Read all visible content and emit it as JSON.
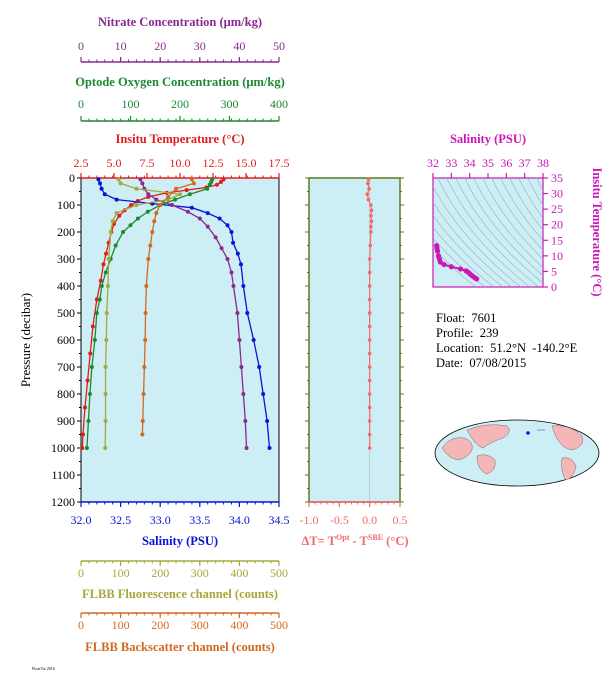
{
  "figure": {
    "footer_text": "FloatViz 2016",
    "info": {
      "float_label": "Float:",
      "float": "7601",
      "profile_label": "Profile:",
      "profile": "239",
      "location_label": "Location:",
      "location": "51.2°N  -140.2°E",
      "date_label": "Date:",
      "date": "07/08/2015"
    }
  },
  "colors": {
    "panel_bg": "#cdeef5",
    "temperature": "#e31b1b",
    "salinity": "#0a14d6",
    "nitrate": "#8a2a8f",
    "oxygen": "#1c8a2e",
    "fluorescence": "#a5a83a",
    "backscatter": "#d2691e",
    "delta_t": "#f06a6a",
    "ts": "#cc17b5"
  },
  "chart_data": [
    {
      "type": "line",
      "panel": "profiles",
      "ylabel": "Pressure (decibar)",
      "yticks": [
        0,
        100,
        200,
        300,
        400,
        500,
        600,
        700,
        800,
        900,
        1000,
        1100,
        1200
      ],
      "ylim": [
        0,
        1200
      ],
      "axes": {
        "nitrate": {
          "label": "Nitrate Concentration (μm/kg)",
          "lim": [
            0,
            50
          ],
          "ticks": [
            0,
            10,
            20,
            30,
            40,
            50
          ]
        },
        "oxygen": {
          "label": "Optode Oxygen Concentration (μm/kg)",
          "lim": [
            0,
            400
          ],
          "ticks": [
            0,
            100,
            200,
            300,
            400
          ]
        },
        "temperature": {
          "label": "Insitu Temperature (°C)",
          "lim": [
            2.5,
            17.5
          ],
          "ticks": [
            "2.5",
            "5.0",
            "7.5",
            "10.0",
            "12.5",
            "15.0",
            "17.5"
          ]
        },
        "salinity": {
          "label": "Salinity (PSU)",
          "lim": [
            32,
            34.5
          ],
          "ticks": [
            "32.0",
            "32.5",
            "33.0",
            "33.5",
            "34.0",
            "34.5"
          ]
        },
        "fluorescence": {
          "label": "FLBB Fluorescence channel (counts)",
          "lim": [
            0,
            500
          ],
          "ticks": [
            0,
            100,
            200,
            300,
            400,
            500
          ]
        },
        "backscatter": {
          "label": "FLBB Backscatter channel (counts)",
          "lim": [
            0,
            500
          ],
          "ticks": [
            0,
            100,
            200,
            300,
            400,
            500
          ]
        }
      },
      "series": [
        {
          "key": "temperature",
          "points": [
            [
              13.3,
              5
            ],
            [
              13.1,
              15
            ],
            [
              12.8,
              25
            ],
            [
              12.0,
              35
            ],
            [
              10.5,
              45
            ],
            [
              9.0,
              55
            ],
            [
              7.6,
              70
            ],
            [
              6.8,
              85
            ],
            [
              6.3,
              100
            ],
            [
              5.8,
              120
            ],
            [
              5.4,
              140
            ],
            [
              5.0,
              170
            ],
            [
              4.8,
              200
            ],
            [
              4.6,
              240
            ],
            [
              4.4,
              280
            ],
            [
              4.2,
              320
            ],
            [
              4.0,
              380
            ],
            [
              3.7,
              450
            ],
            [
              3.4,
              550
            ],
            [
              3.2,
              650
            ],
            [
              3.0,
              750
            ],
            [
              2.8,
              850
            ],
            [
              2.65,
              950
            ],
            [
              2.6,
              1000
            ]
          ]
        },
        {
          "key": "salinity",
          "points": [
            [
              32.22,
              5
            ],
            [
              32.24,
              20
            ],
            [
              32.26,
              40
            ],
            [
              32.3,
              60
            ],
            [
              32.45,
              80
            ],
            [
              32.9,
              95
            ],
            [
              33.4,
              110
            ],
            [
              33.6,
              130
            ],
            [
              33.75,
              150
            ],
            [
              33.85,
              175
            ],
            [
              33.9,
              200
            ],
            [
              33.92,
              240
            ],
            [
              33.98,
              280
            ],
            [
              34.02,
              320
            ],
            [
              34.05,
              400
            ],
            [
              34.1,
              500
            ],
            [
              34.18,
              600
            ],
            [
              34.25,
              700
            ],
            [
              34.3,
              800
            ],
            [
              34.35,
              900
            ],
            [
              34.38,
              1000
            ]
          ]
        },
        {
          "key": "nitrate",
          "points": [
            [
              15,
              5
            ],
            [
              15.5,
              20
            ],
            [
              16,
              40
            ],
            [
              17,
              60
            ],
            [
              19,
              80
            ],
            [
              23,
              100
            ],
            [
              27,
              125
            ],
            [
              30,
              150
            ],
            [
              32,
              180
            ],
            [
              34,
              220
            ],
            [
              35.5,
              260
            ],
            [
              37,
              300
            ],
            [
              38,
              350
            ],
            [
              38.5,
              400
            ],
            [
              39.5,
              500
            ],
            [
              40,
              600
            ],
            [
              40.5,
              700
            ],
            [
              41,
              800
            ],
            [
              41.5,
              900
            ],
            [
              41.8,
              1000
            ]
          ]
        },
        {
          "key": "oxygen",
          "points": [
            [
              265,
              5
            ],
            [
              263,
              15
            ],
            [
              260,
              25
            ],
            [
              255,
              40
            ],
            [
              220,
              60
            ],
            [
              190,
              80
            ],
            [
              160,
              100
            ],
            [
              135,
              125
            ],
            [
              115,
              150
            ],
            [
              100,
              175
            ],
            [
              85,
              200
            ],
            [
              70,
              250
            ],
            [
              60,
              300
            ],
            [
              50,
              350
            ],
            [
              42,
              400
            ],
            [
              38,
              450
            ],
            [
              32,
              500
            ],
            [
              28,
              600
            ],
            [
              22,
              700
            ],
            [
              18,
              800
            ],
            [
              15,
              900
            ],
            [
              12,
              1000
            ]
          ]
        },
        {
          "key": "fluorescence",
          "points": [
            [
              95,
              5
            ],
            [
              100,
              20
            ],
            [
              140,
              40
            ],
            [
              250,
              60
            ],
            [
              220,
              80
            ],
            [
              140,
              100
            ],
            [
              90,
              130
            ],
            [
              80,
              160
            ],
            [
              75,
              200
            ],
            [
              70,
              300
            ],
            [
              68,
              400
            ],
            [
              65,
              500
            ],
            [
              64,
              600
            ],
            [
              62,
              700
            ],
            [
              62,
              800
            ],
            [
              62,
              900
            ],
            [
              61,
              1000
            ]
          ]
        },
        {
          "key": "backscatter",
          "points": [
            [
              280,
              5
            ],
            [
              285,
              20
            ],
            [
              240,
              40
            ],
            [
              220,
              70
            ],
            [
              200,
              100
            ],
            [
              190,
              130
            ],
            [
              185,
              160
            ],
            [
              180,
              200
            ],
            [
              175,
              250
            ],
            [
              170,
              300
            ],
            [
              165,
              400
            ],
            [
              163,
              500
            ],
            [
              162,
              600
            ],
            [
              160,
              700
            ],
            [
              158,
              800
            ],
            [
              156,
              900
            ],
            [
              155,
              950
            ]
          ]
        }
      ]
    },
    {
      "type": "line",
      "panel": "delta_t",
      "xlabel": "ΔT= T",
      "xlabel_sup1": "Opt",
      "xlabel_mid": " - T",
      "xlabel_sup2": "SBE",
      "xlabel_unit": " (°C)",
      "xlim": [
        -1.0,
        0.5
      ],
      "xticks": [
        "-1.0",
        "-0.5",
        "0.0",
        "0.5"
      ],
      "ylim": [
        0,
        1200
      ],
      "series": [
        {
          "name": "",
          "points": [
            [
              -0.02,
              5
            ],
            [
              -0.03,
              20
            ],
            [
              -0.01,
              40
            ],
            [
              -0.04,
              60
            ],
            [
              -0.02,
              80
            ],
            [
              0.02,
              100
            ],
            [
              0.03,
              120
            ],
            [
              0.02,
              140
            ],
            [
              0.03,
              160
            ],
            [
              0.02,
              180
            ],
            [
              0.02,
              200
            ],
            [
              0.01,
              250
            ],
            [
              0.0,
              300
            ],
            [
              0.0,
              350
            ],
            [
              0.0,
              400
            ],
            [
              0.0,
              450
            ],
            [
              0.0,
              500
            ],
            [
              0.0,
              550
            ],
            [
              0.0,
              600
            ],
            [
              0.0,
              650
            ],
            [
              0.0,
              700
            ],
            [
              0.0,
              750
            ],
            [
              0.0,
              800
            ],
            [
              0.0,
              850
            ],
            [
              0.0,
              900
            ],
            [
              0.0,
              950
            ],
            [
              0.0,
              1000
            ]
          ]
        }
      ]
    },
    {
      "type": "scatter",
      "panel": "ts",
      "xlabel": "Salinity (PSU)",
      "ylabel": "Insitu Temperature (°C)",
      "xlim": [
        32,
        38
      ],
      "xticks": [
        32,
        33,
        34,
        35,
        36,
        37,
        38
      ],
      "ylim": [
        0,
        35
      ],
      "yticks": [
        0,
        5,
        10,
        15,
        20,
        25,
        30,
        35
      ],
      "series": [
        {
          "name": "",
          "points": [
            [
              32.2,
              13.3
            ],
            [
              32.22,
              12.5
            ],
            [
              32.25,
              11.5
            ],
            [
              32.3,
              10.0
            ],
            [
              32.35,
              9.0
            ],
            [
              32.4,
              8.0
            ],
            [
              32.6,
              7.2
            ],
            [
              33.0,
              6.5
            ],
            [
              33.5,
              5.8
            ],
            [
              33.8,
              5.2
            ],
            [
              33.9,
              4.8
            ],
            [
              34.0,
              4.3
            ],
            [
              34.1,
              3.8
            ],
            [
              34.2,
              3.3
            ],
            [
              34.3,
              2.9
            ],
            [
              34.38,
              2.6
            ]
          ]
        }
      ]
    }
  ]
}
